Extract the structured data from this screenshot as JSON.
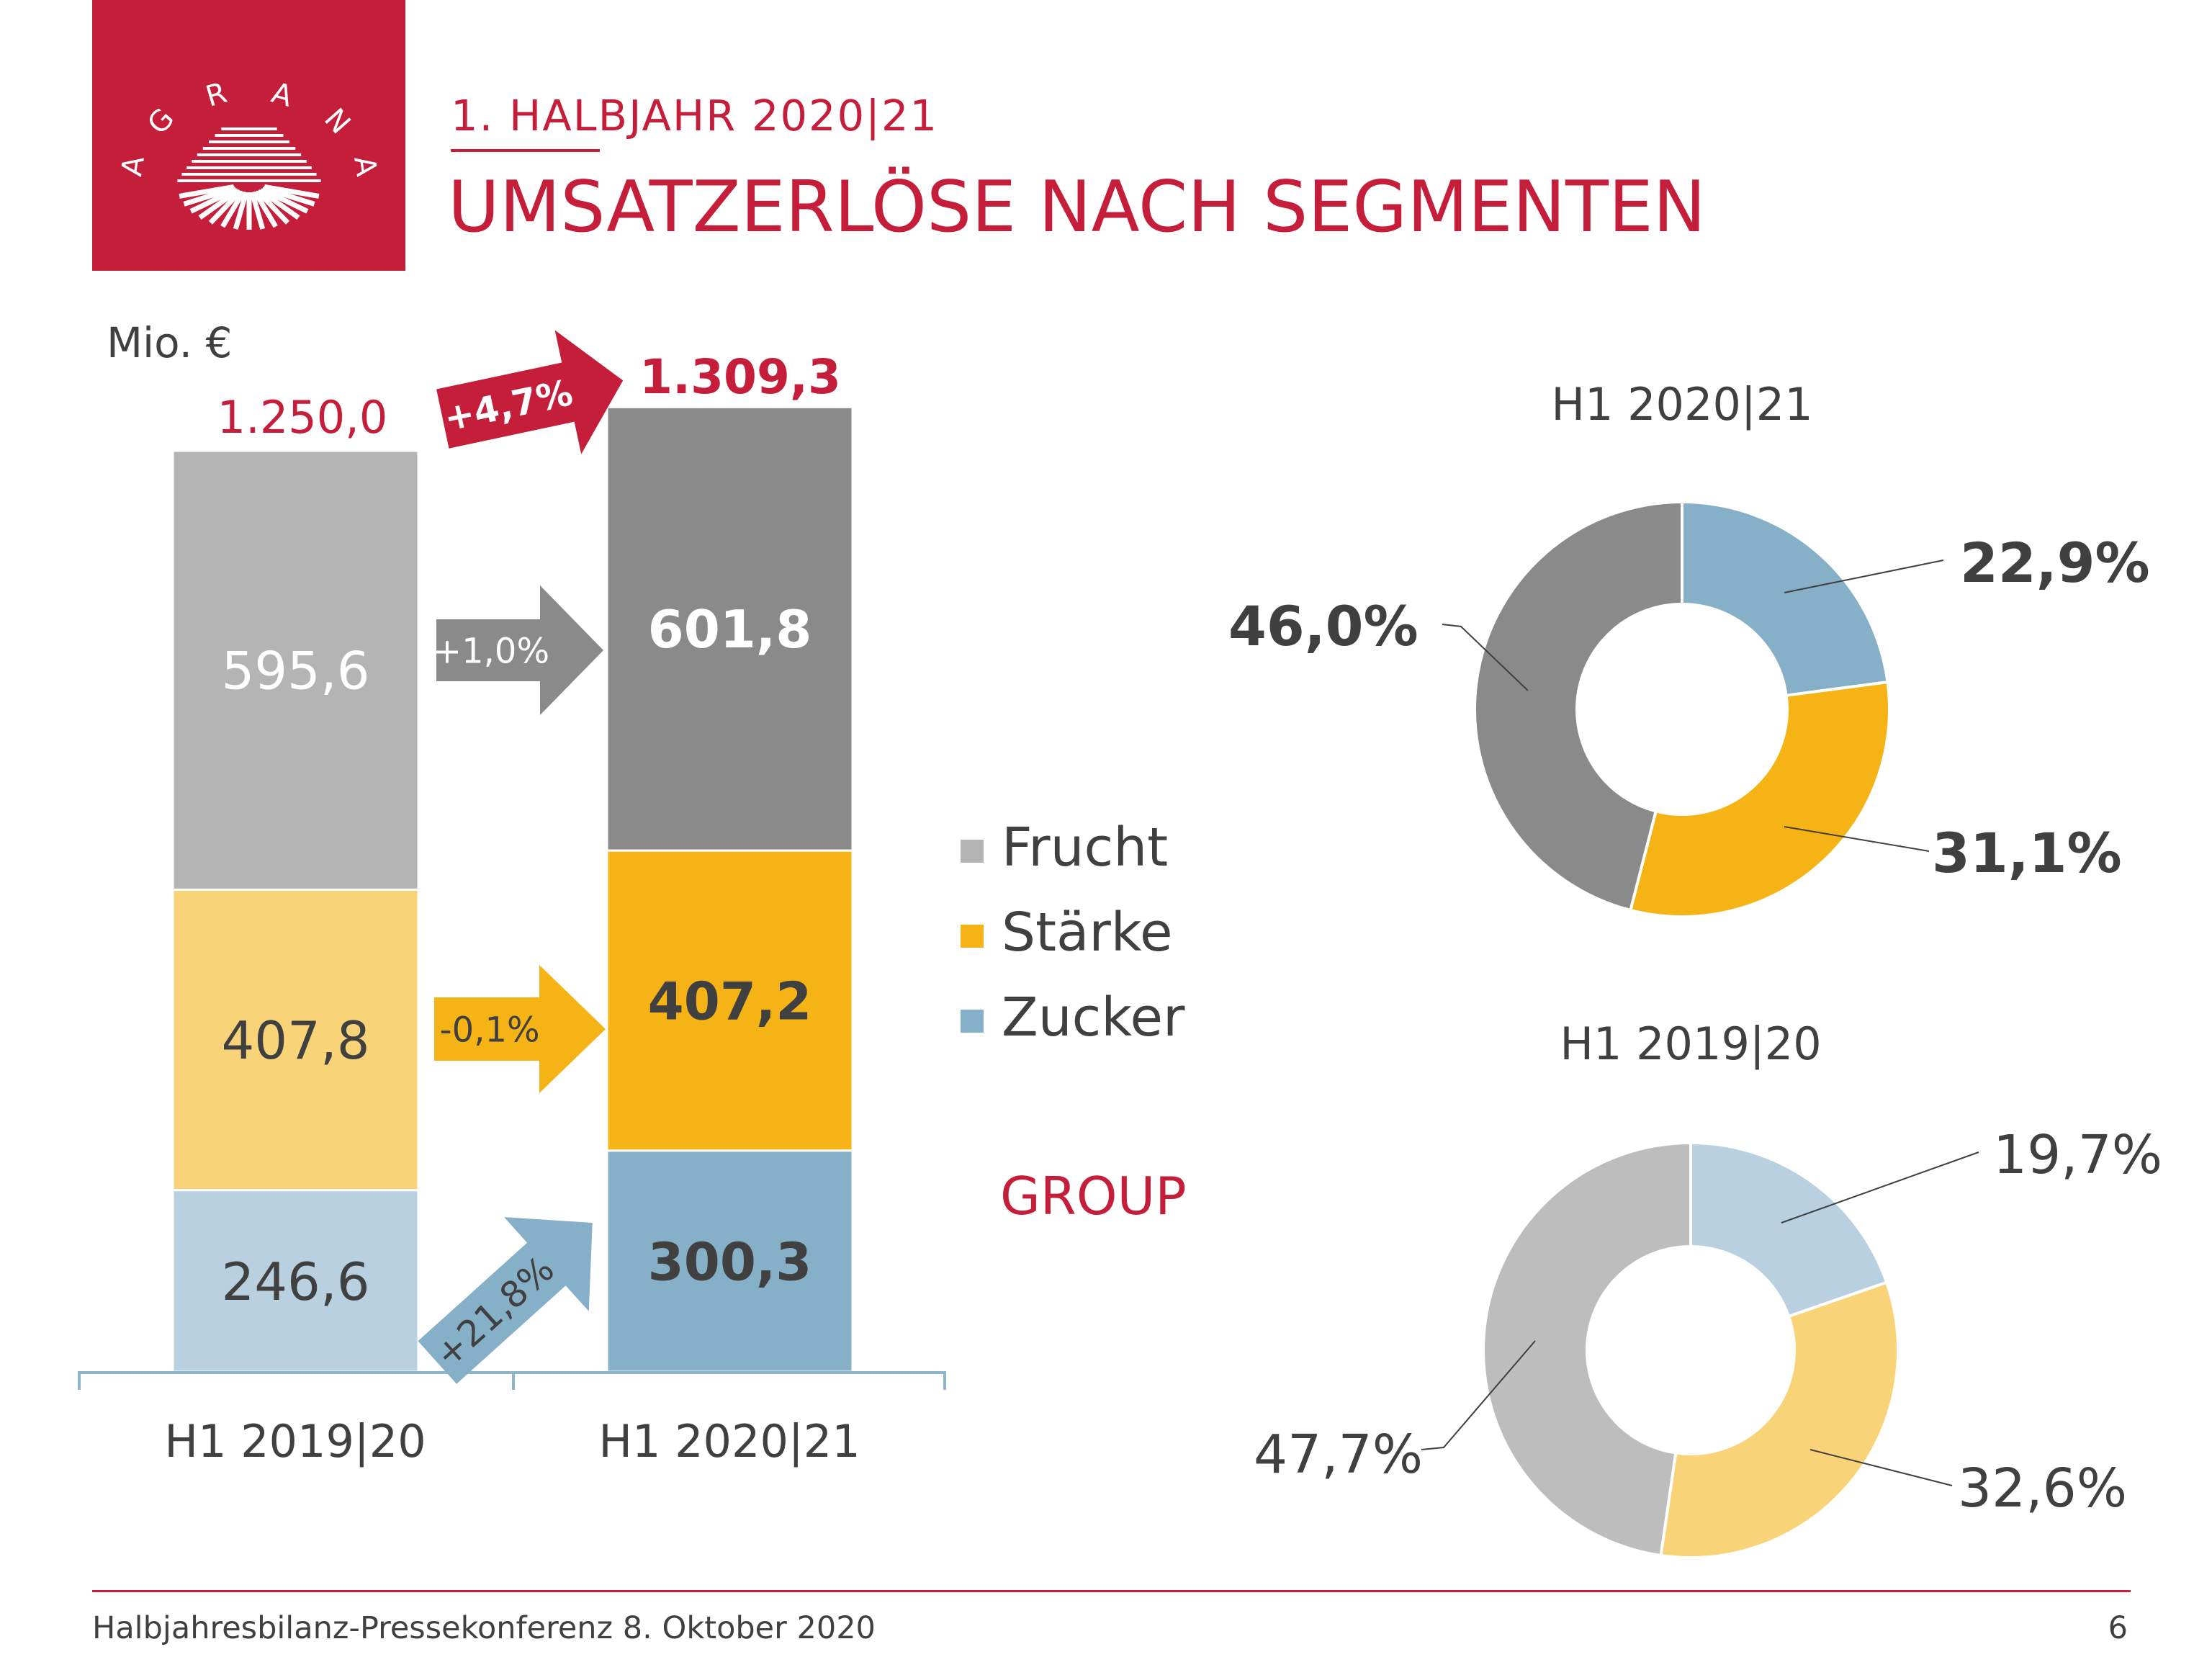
{
  "logo": {
    "text": "AGRANA",
    "color": "#c41e3a"
  },
  "header": {
    "subtitle": "1. HALBJAHR 2020|21",
    "title": "UMSATZERLÖSE NACH SEGMENTEN"
  },
  "footer": {
    "text": "Halbjahresbilanz-Pressekonferenz 8. Oktober 2020",
    "page_number": "6"
  },
  "legend": {
    "items": [
      {
        "label": "Frucht",
        "color": "#b4b4b4"
      },
      {
        "label": "Stärke",
        "color": "#f5b316"
      },
      {
        "label": "Zucker",
        "color": "#86afc8"
      }
    ],
    "group_label": "GROUP"
  },
  "chart_data": [
    {
      "type": "bar",
      "stacked": true,
      "unit_label": "Mio. €",
      "categories": [
        "H1 2019|20",
        "H1 2020|21"
      ],
      "series": [
        {
          "name": "Zucker",
          "values": [
            246.6,
            300.3
          ],
          "labels": [
            "246,6",
            "300,3"
          ],
          "colors": [
            "#b8d0e0",
            "#86afc8"
          ]
        },
        {
          "name": "Stärke",
          "values": [
            407.8,
            407.2
          ],
          "labels": [
            "407,8",
            "407,2"
          ],
          "colors": [
            "#f8d378",
            "#f5b316"
          ]
        },
        {
          "name": "Frucht",
          "values": [
            595.6,
            601.8
          ],
          "labels": [
            "595,6",
            "601,8"
          ],
          "colors": [
            "#b4b4b4",
            "#8a8a8a"
          ]
        }
      ],
      "totals": [
        1250.0,
        1309.3
      ],
      "total_labels": [
        "1.250,0",
        "1.309,3"
      ],
      "changes": [
        {
          "segment": "Total",
          "label": "+4,7%",
          "color": "#c41e3a"
        },
        {
          "segment": "Frucht",
          "label": "+1,0%",
          "color": "#8a8a8a"
        },
        {
          "segment": "Stärke",
          "label": "-0,1%",
          "color": "#f5b316"
        },
        {
          "segment": "Zucker",
          "label": "+21,8%",
          "color": "#86afc8"
        }
      ]
    },
    {
      "type": "pie",
      "donut": true,
      "title": "H1 2020|21",
      "categories": [
        "Zucker",
        "Stärke",
        "Frucht"
      ],
      "values": [
        22.9,
        31.1,
        46.0
      ],
      "labels": [
        "22,9%",
        "31,1%",
        "46,0%"
      ],
      "colors": [
        "#86afc8",
        "#f5b316",
        "#8a8a8a"
      ]
    },
    {
      "type": "pie",
      "donut": true,
      "title": "H1 2019|20",
      "categories": [
        "Zucker",
        "Stärke",
        "Frucht"
      ],
      "values": [
        19.7,
        32.6,
        47.7
      ],
      "labels": [
        "19,7%",
        "32,6%",
        "47,7%"
      ],
      "colors": [
        "#b8d0e0",
        "#f8d378",
        "#bdbdbd"
      ]
    }
  ]
}
